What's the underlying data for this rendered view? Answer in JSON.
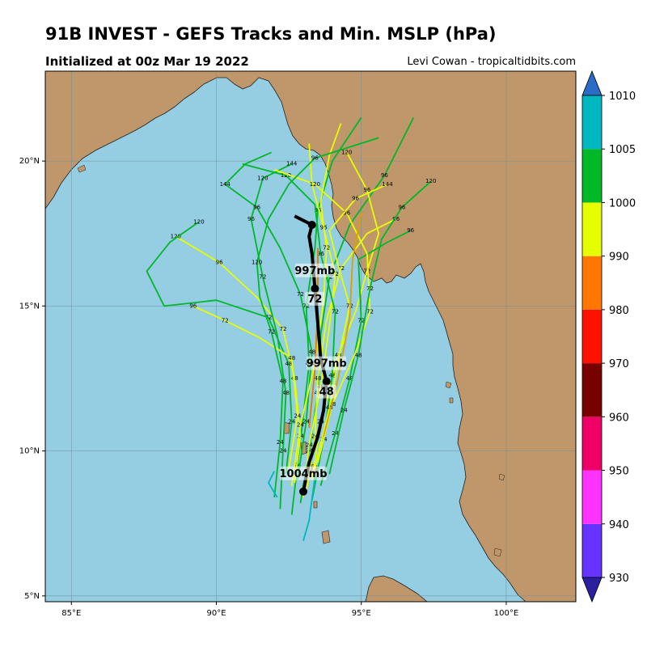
{
  "title": "91B INVEST - GEFS Tracks and Min. MSLP (hPa)",
  "subtitle": "Initialized at 00z Mar 19 2022",
  "credit": "Levi Cowan - tropicaltidbits.com",
  "map": {
    "lon_range": [
      84.1,
      102.4
    ],
    "lat_range": [
      4.8,
      23.1
    ],
    "lon_ticks": [
      "85°E",
      "90°E",
      "95°E",
      "100°E"
    ],
    "lat_ticks": [
      "5°N",
      "10°N",
      "15°N",
      "20°N"
    ],
    "colors": {
      "ocean": "#95cde3",
      "land": "#c0976a",
      "coast": "#222222",
      "grid": "#6f8f9c"
    }
  },
  "ensemble_tracks": [
    {
      "color": "#00b828",
      "points": [
        [
          92.6,
          7.8
        ],
        [
          92.8,
          9.5
        ],
        [
          93.0,
          11.2
        ],
        [
          93.2,
          13.0
        ],
        [
          93.1,
          15.0
        ],
        [
          93.4,
          17.0
        ],
        [
          93.5,
          18.3
        ],
        [
          94.0,
          20.0
        ],
        [
          95.0,
          21.5
        ]
      ],
      "labels": [
        [
          92.8,
          9.5,
          "24"
        ],
        [
          93.2,
          13.0,
          "48"
        ],
        [
          93.1,
          15.0,
          "72"
        ],
        [
          93.5,
          18.3,
          "96"
        ]
      ]
    },
    {
      "color": "#00b828",
      "points": [
        [
          92.9,
          8.2
        ],
        [
          93.2,
          10.0
        ],
        [
          93.5,
          12.0
        ],
        [
          93.6,
          14.0
        ],
        [
          93.9,
          16.0
        ],
        [
          94.6,
          17.8
        ],
        [
          95.8,
          19.5
        ],
        [
          96.8,
          21.5
        ]
      ],
      "labels": [
        [
          93.2,
          10.0,
          "24"
        ],
        [
          93.5,
          12.0,
          "48"
        ],
        [
          93.9,
          16.0,
          "72"
        ],
        [
          95.8,
          19.5,
          "96"
        ]
      ]
    },
    {
      "color": "#e6ff00",
      "points": [
        [
          93.1,
          8.6
        ],
        [
          93.4,
          10.5
        ],
        [
          93.5,
          12.5
        ],
        [
          93.8,
          14.5
        ],
        [
          94.3,
          16.3
        ],
        [
          95.2,
          17.5
        ],
        [
          96.2,
          18.0
        ]
      ],
      "labels": [
        [
          93.4,
          10.5,
          "24"
        ],
        [
          93.5,
          12.5,
          "48"
        ],
        [
          94.3,
          16.3,
          "72"
        ],
        [
          96.2,
          18.0,
          "96"
        ]
      ]
    },
    {
      "color": "#e6ff00",
      "points": [
        [
          92.7,
          8.9
        ],
        [
          92.9,
          10.5
        ],
        [
          92.7,
          12.5
        ],
        [
          92.3,
          14.2
        ],
        [
          91.4,
          15.3
        ],
        [
          90.1,
          16.5
        ],
        [
          88.6,
          17.4
        ]
      ],
      "labels": [
        [
          92.9,
          10.5,
          "24"
        ],
        [
          92.7,
          12.5,
          "48"
        ],
        [
          92.3,
          14.2,
          "72"
        ],
        [
          90.1,
          16.5,
          "96"
        ],
        [
          88.6,
          17.4,
          "120"
        ]
      ]
    },
    {
      "color": "#00b828",
      "points": [
        [
          92.4,
          9.2
        ],
        [
          92.6,
          11.0
        ],
        [
          92.5,
          13.0
        ],
        [
          91.8,
          14.6
        ],
        [
          90.0,
          15.2
        ],
        [
          88.2,
          15.0
        ],
        [
          87.6,
          16.2
        ],
        [
          88.4,
          17.2
        ],
        [
          89.4,
          17.9
        ]
      ],
      "labels": [
        [
          92.6,
          11.0,
          "24"
        ],
        [
          92.5,
          13.0,
          "48"
        ],
        [
          91.8,
          14.6,
          "72"
        ],
        [
          89.4,
          17.9,
          "120"
        ]
      ]
    },
    {
      "color": "#e6ff00",
      "points": [
        [
          93.3,
          9.0
        ],
        [
          93.6,
          11.0
        ],
        [
          94.2,
          13.3
        ],
        [
          94.8,
          14.8
        ],
        [
          95.2,
          16.2
        ],
        [
          95.6,
          17.5
        ],
        [
          95.2,
          19.0
        ],
        [
          94.5,
          20.3
        ]
      ],
      "labels": [
        [
          93.6,
          11.0,
          "24"
        ],
        [
          94.2,
          13.3,
          "48"
        ],
        [
          95.2,
          16.2,
          "72"
        ],
        [
          95.2,
          19.0,
          "96"
        ],
        [
          94.5,
          20.3,
          "120"
        ]
      ]
    },
    {
      "color": "#00b828",
      "points": [
        [
          92.2,
          8.0
        ],
        [
          92.3,
          10.0
        ],
        [
          92.4,
          12.0
        ],
        [
          92.1,
          14.0
        ],
        [
          91.6,
          16.0
        ],
        [
          91.2,
          18.0
        ],
        [
          91.6,
          19.4
        ],
        [
          92.6,
          19.9
        ]
      ],
      "labels": [
        [
          92.3,
          10.0,
          "24"
        ],
        [
          92.4,
          12.0,
          "48"
        ],
        [
          91.6,
          16.0,
          "72"
        ],
        [
          91.2,
          18.0,
          "96"
        ],
        [
          91.6,
          19.4,
          "120"
        ],
        [
          92.6,
          19.9,
          "144"
        ]
      ]
    },
    {
      "color": "#e6ff00",
      "points": [
        [
          93.0,
          8.4
        ],
        [
          93.2,
          10.2
        ],
        [
          93.6,
          12.2
        ],
        [
          93.9,
          14.3
        ],
        [
          94.1,
          16.1
        ],
        [
          93.7,
          17.7
        ],
        [
          93.3,
          19.2
        ],
        [
          93.2,
          20.6
        ]
      ],
      "labels": [
        [
          93.2,
          10.2,
          "24"
        ],
        [
          93.6,
          12.2,
          "48"
        ],
        [
          94.1,
          16.1,
          "72"
        ],
        [
          93.7,
          17.7,
          "96"
        ]
      ]
    },
    {
      "color": "#00b828",
      "points": [
        [
          93.6,
          8.8
        ],
        [
          94.1,
          10.6
        ],
        [
          94.6,
          12.5
        ],
        [
          95.0,
          14.5
        ],
        [
          94.9,
          16.6
        ],
        [
          95.9,
          17.2
        ],
        [
          96.7,
          17.6
        ]
      ],
      "labels": [
        [
          94.1,
          10.6,
          "24"
        ],
        [
          94.6,
          12.5,
          "48"
        ],
        [
          95.0,
          14.5,
          "72"
        ],
        [
          96.7,
          17.6,
          "96"
        ]
      ]
    },
    {
      "color": "#e6ff00",
      "points": [
        [
          92.5,
          9.4
        ],
        [
          92.8,
          11.2
        ],
        [
          92.6,
          13.2
        ],
        [
          91.5,
          13.9
        ],
        [
          90.3,
          14.5
        ],
        [
          89.2,
          15.0
        ]
      ],
      "labels": [
        [
          92.8,
          11.2,
          "24"
        ],
        [
          92.6,
          13.2,
          "48"
        ],
        [
          90.3,
          14.5,
          "72"
        ],
        [
          89.2,
          15.0,
          "96"
        ]
      ]
    },
    {
      "color": "#00b828",
      "points": [
        [
          93.3,
          8.3
        ],
        [
          93.7,
          10.4
        ],
        [
          94.0,
          12.6
        ],
        [
          94.1,
          14.8
        ],
        [
          93.6,
          16.8
        ],
        [
          93.4,
          18.5
        ],
        [
          92.4,
          19.5
        ],
        [
          90.9,
          19.9
        ]
      ],
      "labels": [
        [
          93.7,
          10.4,
          "24"
        ],
        [
          94.0,
          12.6,
          "48"
        ],
        [
          94.1,
          14.8,
          "72"
        ],
        [
          93.6,
          16.8,
          "96"
        ],
        [
          92.4,
          19.5,
          "120"
        ]
      ]
    },
    {
      "color": "#e6ff00",
      "points": [
        [
          93.5,
          9.6
        ],
        [
          94.0,
          11.6
        ],
        [
          94.8,
          13.4
        ],
        [
          95.3,
          14.8
        ],
        [
          95.2,
          16.8
        ],
        [
          94.5,
          18.2
        ],
        [
          93.4,
          19.2
        ],
        [
          92.0,
          19.7
        ]
      ],
      "labels": [
        [
          94.0,
          11.6,
          "48"
        ],
        [
          95.3,
          14.8,
          "72"
        ],
        [
          94.5,
          18.2,
          "96"
        ],
        [
          93.4,
          19.2,
          "120"
        ]
      ]
    },
    {
      "color": "#00b828",
      "points": [
        [
          92.8,
          9.0
        ],
        [
          93.1,
          11.0
        ],
        [
          93.3,
          13.4
        ],
        [
          92.9,
          15.4
        ],
        [
          92.2,
          17.0
        ],
        [
          91.4,
          18.4
        ],
        [
          90.3,
          19.2
        ],
        [
          91.0,
          19.9
        ],
        [
          91.9,
          20.3
        ]
      ],
      "labels": [
        [
          93.1,
          11.0,
          "24"
        ],
        [
          93.3,
          13.4,
          "48"
        ],
        [
          92.9,
          15.4,
          "72"
        ],
        [
          91.4,
          18.4,
          "96"
        ],
        [
          90.3,
          19.2,
          "144"
        ]
      ]
    },
    {
      "color": "#00b828",
      "points": [
        [
          93.9,
          9.2
        ],
        [
          94.4,
          11.4
        ],
        [
          94.9,
          13.3
        ],
        [
          95.3,
          15.6
        ],
        [
          95.7,
          17.3
        ],
        [
          96.4,
          18.4
        ],
        [
          97.4,
          19.3
        ]
      ],
      "labels": [
        [
          94.4,
          11.4,
          "24"
        ],
        [
          94.9,
          13.3,
          "48"
        ],
        [
          95.3,
          15.6,
          "72"
        ],
        [
          96.4,
          18.4,
          "96"
        ],
        [
          97.4,
          19.3,
          "120"
        ]
      ]
    },
    {
      "color": "#e6ff00",
      "points": [
        [
          92.6,
          8.8
        ],
        [
          92.9,
          10.9
        ],
        [
          93.4,
          13.0
        ],
        [
          93.7,
          15.2
        ],
        [
          93.8,
          17.0
        ],
        [
          93.6,
          18.6
        ],
        [
          93.9,
          20.2
        ],
        [
          94.3,
          21.3
        ]
      ],
      "labels": [
        [
          92.9,
          10.9,
          "24"
        ],
        [
          93.4,
          13.0,
          "48"
        ],
        [
          93.8,
          17.0,
          "72"
        ]
      ]
    },
    {
      "color": "#00b828",
      "points": [
        [
          92.0,
          8.4
        ],
        [
          92.2,
          10.3
        ],
        [
          92.3,
          12.4
        ],
        [
          91.9,
          14.1
        ],
        [
          91.5,
          15.3
        ],
        [
          91.4,
          16.5
        ],
        [
          91.8,
          18.0
        ],
        [
          92.5,
          19.2
        ],
        [
          93.4,
          20.1
        ],
        [
          95.6,
          20.8
        ]
      ],
      "labels": [
        [
          92.2,
          10.3,
          "24"
        ],
        [
          92.3,
          12.4,
          "48"
        ],
        [
          91.9,
          14.1,
          "72"
        ],
        [
          91.4,
          16.5,
          "120"
        ],
        [
          93.4,
          20.1,
          "96"
        ]
      ]
    },
    {
      "color": "#e6ff00",
      "points": [
        [
          93.4,
          9.4
        ],
        [
          93.9,
          11.5
        ],
        [
          94.3,
          13.6
        ],
        [
          94.6,
          15.0
        ],
        [
          94.2,
          16.4
        ],
        [
          93.9,
          17.6
        ],
        [
          94.8,
          18.7
        ],
        [
          95.9,
          19.2
        ]
      ],
      "labels": [
        [
          93.9,
          11.5,
          "48"
        ],
        [
          94.6,
          15.0,
          "72"
        ],
        [
          94.8,
          18.7,
          "96"
        ],
        [
          95.9,
          19.2,
          "144"
        ]
      ]
    },
    {
      "color": "#d9a000",
      "points": [
        [
          93.7,
          10.5
        ],
        [
          94.2,
          12.5
        ],
        [
          94.6,
          14.6
        ],
        [
          94.7,
          16.6
        ],
        [
          95.0,
          18.2
        ]
      ],
      "labels": []
    },
    {
      "color": "#e07a00",
      "points": [
        [
          93.2,
          10.8
        ],
        [
          93.4,
          12.8
        ],
        [
          93.5,
          15.0
        ],
        [
          93.5,
          17.0
        ]
      ],
      "labels": []
    },
    {
      "color": "#00b8c0",
      "points": [
        [
          92.0,
          9.3
        ],
        [
          91.8,
          8.9
        ],
        [
          92.1,
          8.4
        ]
      ],
      "labels": []
    },
    {
      "color": "#00b8c0",
      "points": [
        [
          93.4,
          9.1
        ],
        [
          93.2,
          7.6
        ],
        [
          93.0,
          6.9
        ]
      ],
      "labels": []
    }
  ],
  "mean_track": {
    "color": "#000000",
    "points": [
      [
        93.0,
        8.6
      ],
      [
        93.2,
        9.6
      ],
      [
        93.5,
        10.5
      ],
      [
        93.7,
        11.4
      ],
      [
        93.8,
        12.4
      ],
      [
        93.6,
        13.2
      ],
      [
        93.5,
        14.4
      ],
      [
        93.4,
        15.6
      ],
      [
        93.3,
        16.8
      ],
      [
        93.2,
        17.4
      ],
      [
        93.3,
        17.8
      ],
      [
        92.7,
        18.1
      ]
    ],
    "markers": [
      {
        "lon": 93.0,
        "lat": 8.6,
        "pressure": "1004mb",
        "hour": ""
      },
      {
        "lon": 93.8,
        "lat": 12.4,
        "pressure": "997mb",
        "hour": "48"
      },
      {
        "lon": 93.4,
        "lat": 15.6,
        "pressure": "997mb",
        "hour": "72"
      },
      {
        "lon": 93.3,
        "lat": 17.8,
        "pressure": "",
        "hour": ""
      }
    ]
  },
  "colorbar": {
    "levels": [
      "930",
      "940",
      "950",
      "960",
      "970",
      "980",
      "990",
      "1000",
      "1005",
      "1010"
    ],
    "colors": [
      "#6633ff",
      "#ff33ff",
      "#ee0066",
      "#770000",
      "#ff1100",
      "#ff7700",
      "#e6ff00",
      "#00b828",
      "#00b8c0"
    ],
    "under_color": "#2a20a0",
    "over_color": "#2b6cc4"
  }
}
